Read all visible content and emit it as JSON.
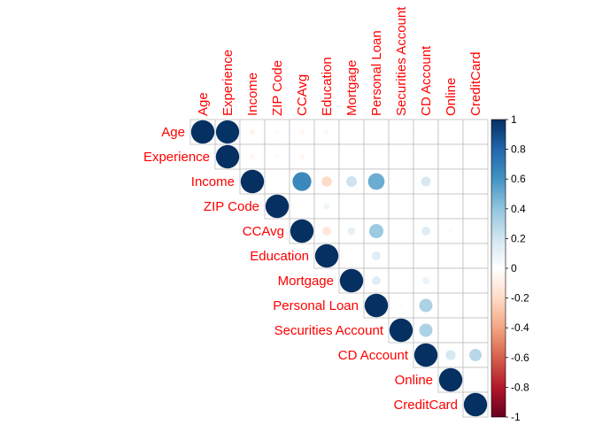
{
  "chart_data": {
    "type": "heatmap",
    "subtype": "correlation-matrix-upper-circles",
    "variables": [
      "Age",
      "Experience",
      "Income",
      "ZIP Code",
      "CCAvg",
      "Education",
      "Mortgage",
      "Personal Loan",
      "Securities Account",
      "CD Account",
      "Online",
      "CreditCard"
    ],
    "matrix": [
      [
        1.0,
        0.99,
        -0.06,
        -0.03,
        -0.05,
        0.04,
        -0.01,
        -0.01,
        0.0,
        0.01,
        0.01,
        0.01
      ],
      [
        0.99,
        1.0,
        -0.05,
        -0.03,
        -0.05,
        0.01,
        -0.01,
        -0.01,
        0.0,
        0.01,
        0.01,
        0.01
      ],
      [
        -0.06,
        -0.05,
        1.0,
        -0.02,
        0.65,
        -0.19,
        0.21,
        0.5,
        0.0,
        0.17,
        0.01,
        0.0
      ],
      [
        -0.03,
        -0.03,
        -0.02,
        1.0,
        -0.01,
        0.07,
        0.01,
        0.0,
        0.0,
        0.02,
        0.02,
        0.01
      ],
      [
        -0.05,
        -0.05,
        0.65,
        -0.01,
        1.0,
        -0.14,
        0.11,
        0.37,
        0.02,
        0.14,
        -0.04,
        -0.01
      ],
      [
        0.04,
        0.01,
        -0.19,
        0.07,
        -0.14,
        1.0,
        -0.03,
        0.14,
        -0.01,
        0.01,
        -0.02,
        -0.01
      ],
      [
        -0.01,
        -0.01,
        0.21,
        0.01,
        0.11,
        -0.03,
        1.0,
        0.14,
        -0.01,
        0.09,
        -0.01,
        -0.01
      ],
      [
        -0.01,
        -0.01,
        0.5,
        0.0,
        0.37,
        0.14,
        0.14,
        1.0,
        0.02,
        0.32,
        0.01,
        0.0
      ],
      [
        0.0,
        0.0,
        0.0,
        0.0,
        0.02,
        -0.01,
        -0.01,
        0.02,
        1.0,
        0.32,
        0.01,
        -0.02
      ],
      [
        0.01,
        0.01,
        0.17,
        0.02,
        0.14,
        0.01,
        0.09,
        0.32,
        0.32,
        1.0,
        0.18,
        0.28
      ],
      [
        0.01,
        0.01,
        0.01,
        0.02,
        -0.04,
        -0.02,
        -0.01,
        0.01,
        0.01,
        0.18,
        1.0,
        0.0
      ],
      [
        0.01,
        0.01,
        0.0,
        0.01,
        -0.01,
        -0.01,
        -0.01,
        0.0,
        -0.02,
        0.28,
        0.0,
        1.0
      ]
    ],
    "color_scale": {
      "range": [
        -1,
        1
      ],
      "ticks": [
        "1",
        "0.8",
        "0.6",
        "0.4",
        "0.2",
        "0",
        "-0.2",
        "-0.4",
        "-0.6",
        "-0.8",
        "-1"
      ],
      "low_color": "#67001f",
      "mid_color": "#ffffff",
      "high_color": "#053061"
    },
    "label_color": "#ff0000",
    "grid": true,
    "legend": "right"
  }
}
